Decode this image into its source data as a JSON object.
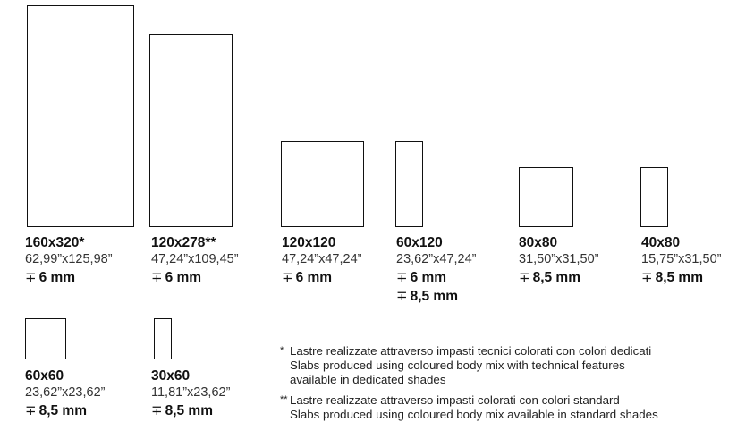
{
  "thickness_icon": "thickness-arrows-icon",
  "slabs": [
    {
      "size": "160x320*",
      "inches": "62,99”x125,98”",
      "thickness": [
        "6 mm"
      ]
    },
    {
      "size": "120x278**",
      "inches": "47,24”x109,45”",
      "thickness": [
        "6 mm"
      ]
    },
    {
      "size": "120x120",
      "inches": "47,24”x47,24”",
      "thickness": [
        "6 mm"
      ]
    },
    {
      "size": "60x120",
      "inches": "23,62”x47,24”",
      "thickness": [
        "6 mm",
        "8,5 mm"
      ]
    },
    {
      "size": "80x80",
      "inches": "31,50”x31,50”",
      "thickness": [
        "8,5 mm"
      ]
    },
    {
      "size": "40x80",
      "inches": "15,75”x31,50”",
      "thickness": [
        "8,5 mm"
      ]
    },
    {
      "size": "60x60",
      "inches": "23,62”x23,62”",
      "thickness": [
        "8,5 mm"
      ]
    },
    {
      "size": "30x60",
      "inches": "11,81”x23,62”",
      "thickness": [
        "8,5 mm"
      ]
    }
  ],
  "notes": [
    {
      "mark": "*",
      "lines": [
        "Lastre realizzate attraverso impasti tecnici colorati con colori dedicati",
        "Slabs produced using coloured body mix with technical features",
        "available in dedicated shades"
      ]
    },
    {
      "mark": "**",
      "lines": [
        "Lastre realizzate attraverso impasti colorati con colori standard",
        "Slabs produced using coloured body mix available in standard shades"
      ]
    }
  ]
}
